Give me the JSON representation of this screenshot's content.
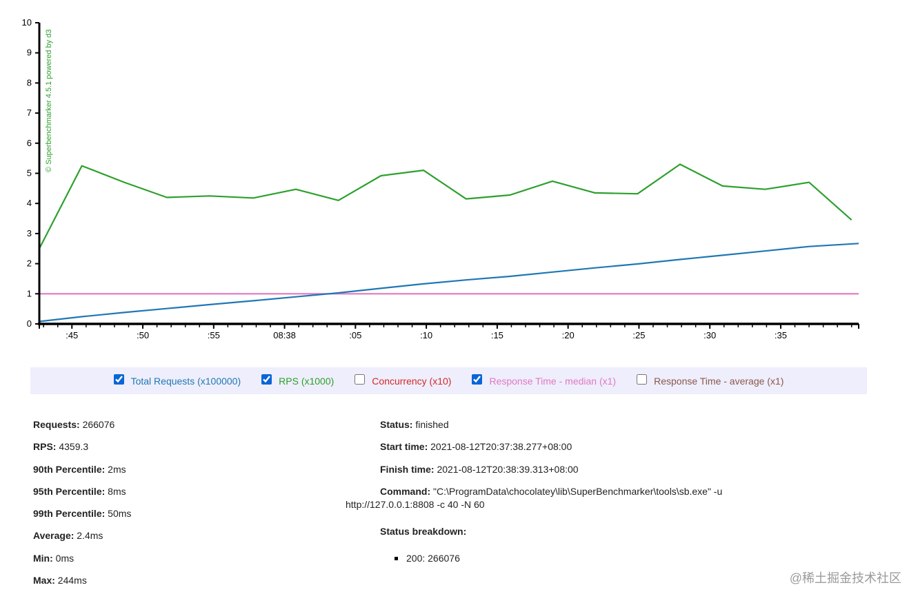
{
  "chart_data": {
    "type": "line",
    "credit": "© Superbenchmarker 4.5.1 powered by d3",
    "ylim": [
      0,
      10
    ],
    "y_ticks": [
      "0",
      "1",
      "2",
      "3",
      "4",
      "5",
      "6",
      "7",
      "8",
      "9",
      "10"
    ],
    "x_range_seconds": [
      2.7,
      60.5
    ],
    "x_ticks": [
      {
        "t": 5,
        "label": ":45"
      },
      {
        "t": 10,
        "label": ":50"
      },
      {
        "t": 15,
        "label": ":55"
      },
      {
        "t": 20,
        "label": "08:38"
      },
      {
        "t": 25,
        "label": ":05"
      },
      {
        "t": 30,
        "label": ":10"
      },
      {
        "t": 35,
        "label": ":15"
      },
      {
        "t": 40,
        "label": ":20"
      },
      {
        "t": 45,
        "label": ":25"
      },
      {
        "t": 50,
        "label": ":30"
      },
      {
        "t": 55,
        "label": ":35"
      }
    ],
    "series": [
      {
        "name": "RPS (x1000)",
        "color": "#2ca02c",
        "x": [
          2.7,
          5.7,
          8.7,
          11.7,
          14.7,
          17.8,
          20.8,
          23.8,
          26.8,
          29.8,
          32.8,
          35.9,
          38.9,
          41.9,
          44.9,
          47.9,
          50.9,
          53.9,
          57.0,
          60.0
        ],
        "values": [
          2.5,
          5.25,
          4.7,
          4.2,
          4.25,
          4.18,
          4.47,
          4.1,
          4.92,
          5.1,
          4.15,
          4.28,
          4.74,
          4.35,
          4.32,
          5.3,
          4.58,
          4.47,
          4.7,
          3.45
        ]
      },
      {
        "name": "Total Requests (x100000)",
        "color": "#1f77b4",
        "x": [
          2.7,
          5.7,
          8.7,
          11.7,
          14.7,
          17.8,
          20.8,
          23.8,
          26.8,
          29.8,
          32.8,
          35.9,
          38.9,
          41.9,
          44.9,
          47.9,
          50.9,
          53.9,
          57.0,
          60.5
        ],
        "values": [
          0.08,
          0.24,
          0.38,
          0.51,
          0.64,
          0.77,
          0.9,
          1.03,
          1.18,
          1.33,
          1.46,
          1.58,
          1.72,
          1.86,
          1.99,
          2.14,
          2.28,
          2.42,
          2.57,
          2.67
        ]
      },
      {
        "name": "Response Time - median (x1)",
        "color": "#e377c2",
        "x": [
          2.7,
          60.5
        ],
        "values": [
          1,
          1
        ]
      }
    ]
  },
  "legend": [
    {
      "label": "Total Requests (x100000)",
      "checked": true,
      "color": "#1f77b4"
    },
    {
      "label": "RPS (x1000)",
      "checked": true,
      "color": "#2ca02c"
    },
    {
      "label": "Concurrency (x10)",
      "checked": false,
      "color": "#d62728"
    },
    {
      "label": "Response Time - median (x1)",
      "checked": true,
      "color": "#e377c2"
    },
    {
      "label": "Response Time - average (x1)",
      "checked": false,
      "color": "#8c564b"
    }
  ],
  "stats": {
    "requests_label": "Requests:",
    "requests": "266076",
    "rps_label": "RPS:",
    "rps": "4359.3",
    "p90_label": "90th Percentile:",
    "p90": "2ms",
    "p95_label": "95th Percentile:",
    "p95": "8ms",
    "p99_label": "99th Percentile:",
    "p99": "50ms",
    "avg_label": "Average:",
    "avg": "2.4ms",
    "min_label": "Min:",
    "min": "0ms",
    "max_label": "Max:",
    "max": "244ms"
  },
  "status": {
    "status_label": "Status:",
    "status": "finished",
    "start_label": "Start time:",
    "start": "2021-08-12T20:37:38.277+08:00",
    "finish_label": "Finish time:",
    "finish": "2021-08-12T20:38:39.313+08:00",
    "command_label": "Command:",
    "command_line1": "\"C:\\ProgramData\\chocolatey\\lib\\SuperBenchmarker\\tools\\sb.exe\" -u",
    "command_line2": "http://127.0.0.1:8808 -c 40 -N 60",
    "breakdown_label": "Status breakdown:",
    "breakdown_item": "200: 266076"
  },
  "watermark": "@稀土掘金技术社区"
}
